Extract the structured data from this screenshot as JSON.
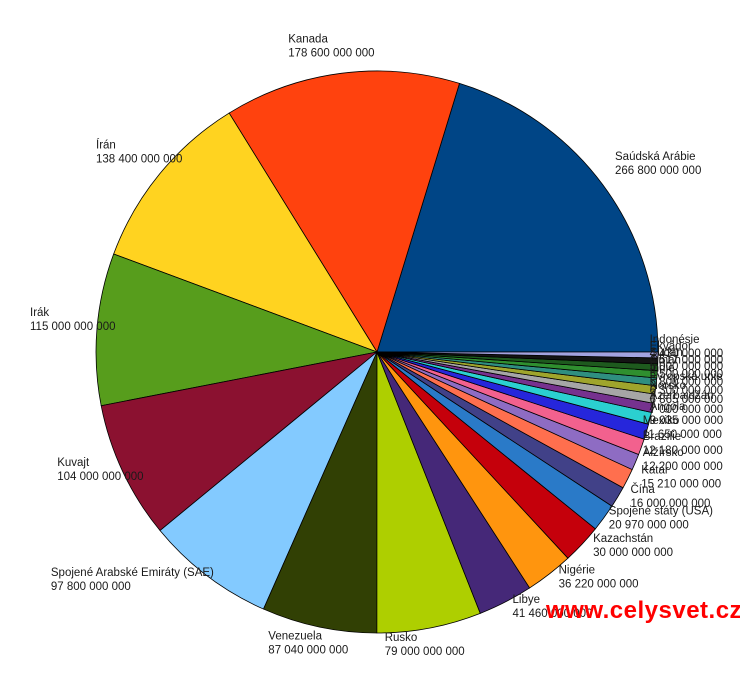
{
  "watermark": {
    "text": "www.celysvet.cz",
    "color": "#ff0000"
  },
  "chart_data": {
    "type": "pie",
    "title": "",
    "legend_position": "none",
    "start_angle_deg": 0,
    "direction": "counterclockwise",
    "label_format": "country name above value, values in barrels with space thousand separators",
    "slices": [
      {
        "id": "saudska-arabie",
        "label": "Saúdská Arábie",
        "value": 266800000000,
        "display_value": "266 800 000 000",
        "color": "#004586"
      },
      {
        "id": "kanada",
        "label": "Kanada",
        "value": 178600000000,
        "display_value": "178 600 000 000",
        "color": "#FF420E"
      },
      {
        "id": "iran",
        "label": "Írán",
        "value": 138400000000,
        "display_value": "138 400 000 000",
        "color": "#FFD320"
      },
      {
        "id": "irak",
        "label": "Irák",
        "value": 115000000000,
        "display_value": "115 000 000 000",
        "color": "#579D1C"
      },
      {
        "id": "kuvajt",
        "label": "Kuvajt",
        "value": 104000000000,
        "display_value": "104 000 000 000",
        "color": "#8B1130"
      },
      {
        "id": "sae",
        "label": "Spojené Arabské Emiráty (SAE)",
        "value": 97800000000,
        "display_value": "97 800 000 000",
        "color": "#83CAFF"
      },
      {
        "id": "venezuela",
        "label": "Venezuela",
        "value": 87040000000,
        "display_value": "87 040 000 000",
        "color": "#314004"
      },
      {
        "id": "rusko",
        "label": "Rusko",
        "value": 79000000000,
        "display_value": "79 000 000 000",
        "color": "#AECF00"
      },
      {
        "id": "libye",
        "label": "Libye",
        "value": 41460000000,
        "display_value": "41 460 000 000",
        "color": "#452878"
      },
      {
        "id": "nigerie",
        "label": "Nigérie",
        "value": 36220000000,
        "display_value": "36 220 000 000",
        "color": "#FF950E"
      },
      {
        "id": "kazachstan",
        "label": "Kazachstán",
        "value": 30000000000,
        "display_value": "30 000 000 000",
        "color": "#C5000B"
      },
      {
        "id": "usa",
        "label": "Spojené státy (USA)",
        "value": 20970000000,
        "display_value": "20 970 000 000",
        "color": "#2A7AC8"
      },
      {
        "id": "cina",
        "label": "Čína",
        "value": 16000000000,
        "display_value": "16 000 000 000",
        "color": "#414188"
      },
      {
        "id": "katar",
        "label": "Katar",
        "value": 15210000000,
        "display_value": "15 210 000 000",
        "color": "#FF6F4E"
      },
      {
        "id": "alzirsko",
        "label": "Alžírsko",
        "value": 12200000000,
        "display_value": "12 200 000 000",
        "color": "#8E6CC3"
      },
      {
        "id": "brazilie",
        "label": "Brazílie",
        "value": 12180000000,
        "display_value": "12 180 000 000",
        "color": "#F2618E"
      },
      {
        "id": "mexiko",
        "label": "Mexiko",
        "value": 11650000000,
        "display_value": "11 650 000 000",
        "color": "#2626DB"
      },
      {
        "id": "angola",
        "label": "Angola",
        "value": 9035000000,
        "display_value": "9 035 000 000",
        "color": "#2BD0D0"
      },
      {
        "id": "azerbajdzan",
        "label": "Azerbajdžán",
        "value": 7000000000,
        "display_value": "7 000 000 000",
        "color": "#76328F"
      },
      {
        "id": "norsko",
        "label": "Norsko",
        "value": 6865000000,
        "display_value": "6 865 000 000",
        "color": "#A6A6A6"
      },
      {
        "id": "evropska-unie",
        "label": "Evropská unie",
        "value": 6300000000,
        "display_value": "6 300 000 000",
        "color": "#9FA52C"
      },
      {
        "id": "indie",
        "label": "Indie",
        "value": 5800000000,
        "display_value": "5 800 000 000",
        "color": "#2F8F80"
      },
      {
        "id": "oman",
        "label": "Omán",
        "value": 5500000000,
        "display_value": "5 500 000 000",
        "color": "#2F8F2F"
      },
      {
        "id": "sudan",
        "label": "Súdán",
        "value": 5000000000,
        "display_value": "5 000 000 000",
        "color": "#1E5A1E"
      },
      {
        "id": "ekvador",
        "label": "Ekvádor",
        "value": 4517000000,
        "display_value": "4 517 000 000",
        "color": "#141414"
      },
      {
        "id": "indonesie",
        "label": "Indonésie",
        "value": 4430000000,
        "display_value": "4 430 000 000",
        "color": "#A3A3E0"
      }
    ]
  }
}
